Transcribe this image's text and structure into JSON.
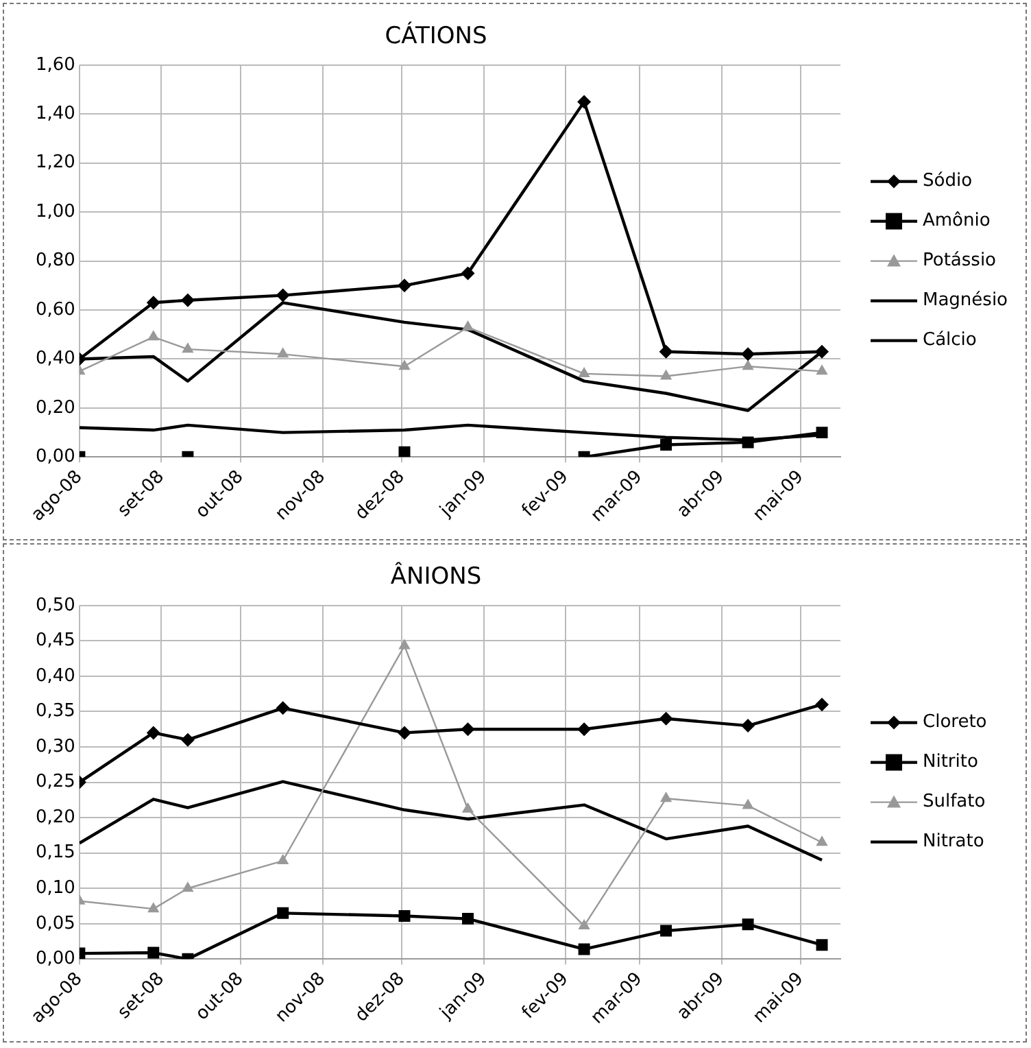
{
  "chart_data": [
    {
      "type": "line",
      "title": "CÁTIONS",
      "legend": "right",
      "grid": true,
      "x": [
        "2008-08-01",
        "2008-08-29",
        "2008-09-11",
        "2008-10-17",
        "2008-12-02",
        "2008-12-26",
        "2009-02-08",
        "2009-03-11",
        "2009-04-11",
        "2009-05-09"
      ],
      "xlim": [
        "2008-08-01",
        "2009-05-16"
      ],
      "xticks": [
        {
          "value": "2008-08-01",
          "label": "ago-08"
        },
        {
          "value": "2008-09-01",
          "label": "set-08"
        },
        {
          "value": "2008-10-01",
          "label": "out-08"
        },
        {
          "value": "2008-11-01",
          "label": "nov-08"
        },
        {
          "value": "2008-12-01",
          "label": "dez-08"
        },
        {
          "value": "2009-01-01",
          "label": "jan-09"
        },
        {
          "value": "2009-02-01",
          "label": "fev-09"
        },
        {
          "value": "2009-03-01",
          "label": "mar-09"
        },
        {
          "value": "2009-04-01",
          "label": "abr-09"
        },
        {
          "value": "2009-05-01",
          "label": "mai-09"
        }
      ],
      "ylim": [
        0,
        1.6
      ],
      "yticks": [
        {
          "value": 0,
          "label": "0,00"
        },
        {
          "value": 0.2,
          "label": "0,20"
        },
        {
          "value": 0.4,
          "label": "0,40"
        },
        {
          "value": 0.6,
          "label": "0,60"
        },
        {
          "value": 0.8,
          "label": "0,80"
        },
        {
          "value": 1.0,
          "label": "1,00"
        },
        {
          "value": 1.2,
          "label": "1,20"
        },
        {
          "value": 1.4,
          "label": "1,40"
        },
        {
          "value": 1.6,
          "label": "1,60"
        }
      ],
      "series": [
        {
          "name": "Sódio",
          "color": "#000000",
          "marker": "diamond",
          "values": [
            0.4,
            0.63,
            0.64,
            0.66,
            0.7,
            0.75,
            1.45,
            0.43,
            0.42,
            0.43
          ]
        },
        {
          "name": "Amônio",
          "color": "#000000",
          "marker": "square",
          "values": [
            0.0,
            null,
            0.0,
            null,
            0.02,
            null,
            0.0,
            0.05,
            0.06,
            0.1
          ]
        },
        {
          "name": "Potássio",
          "color": "#999999",
          "marker": "triangle",
          "values": [
            0.35,
            0.49,
            0.44,
            0.42,
            0.37,
            0.53,
            0.34,
            0.33,
            0.37,
            0.35
          ]
        },
        {
          "name": "Magnésio",
          "color": "#000000",
          "marker": "none",
          "values": [
            0.12,
            0.11,
            0.13,
            0.1,
            0.11,
            0.13,
            0.1,
            0.08,
            0.07,
            0.09
          ]
        },
        {
          "name": "Cálcio",
          "color": "#000000",
          "marker": "none",
          "values": [
            0.4,
            0.41,
            0.31,
            0.63,
            0.55,
            0.52,
            0.31,
            0.26,
            0.19,
            0.43
          ]
        }
      ]
    },
    {
      "type": "line",
      "title": "ÂNIONS",
      "legend": "right",
      "grid": true,
      "x": [
        "2008-08-01",
        "2008-08-29",
        "2008-09-11",
        "2008-10-17",
        "2008-12-02",
        "2008-12-26",
        "2009-02-08",
        "2009-03-11",
        "2009-04-11",
        "2009-05-09"
      ],
      "xlim": [
        "2008-08-01",
        "2009-05-16"
      ],
      "xticks": [
        {
          "value": "2008-08-01",
          "label": "ago-08"
        },
        {
          "value": "2008-09-01",
          "label": "set-08"
        },
        {
          "value": "2008-10-01",
          "label": "out-08"
        },
        {
          "value": "2008-11-01",
          "label": "nov-08"
        },
        {
          "value": "2008-12-01",
          "label": "dez-08"
        },
        {
          "value": "2009-01-01",
          "label": "jan-09"
        },
        {
          "value": "2009-02-01",
          "label": "fev-09"
        },
        {
          "value": "2009-03-01",
          "label": "mar-09"
        },
        {
          "value": "2009-04-01",
          "label": "abr-09"
        },
        {
          "value": "2009-05-01",
          "label": "mai-09"
        }
      ],
      "ylim": [
        0,
        0.5
      ],
      "yticks": [
        {
          "value": 0,
          "label": "0,00"
        },
        {
          "value": 0.05,
          "label": "0,05"
        },
        {
          "value": 0.1,
          "label": "0,10"
        },
        {
          "value": 0.15,
          "label": "0,15"
        },
        {
          "value": 0.2,
          "label": "0,20"
        },
        {
          "value": 0.25,
          "label": "0,25"
        },
        {
          "value": 0.3,
          "label": "0,30"
        },
        {
          "value": 0.35,
          "label": "0,35"
        },
        {
          "value": 0.4,
          "label": "0,40"
        },
        {
          "value": 0.45,
          "label": "0,45"
        },
        {
          "value": 0.5,
          "label": "0,50"
        }
      ],
      "series": [
        {
          "name": "Cloreto",
          "color": "#000000",
          "marker": "diamond",
          "values": [
            0.25,
            0.32,
            0.31,
            0.355,
            0.32,
            0.325,
            0.325,
            0.34,
            0.33,
            0.36
          ]
        },
        {
          "name": "Nitrito",
          "color": "#000000",
          "marker": "square",
          "values": [
            0.008,
            0.009,
            0.0,
            0.065,
            0.061,
            0.057,
            0.014,
            0.04,
            0.049,
            0.02
          ]
        },
        {
          "name": "Sulfato",
          "color": "#999999",
          "marker": "triangle",
          "values": [
            0.082,
            0.071,
            0.1,
            0.139,
            0.443,
            0.212,
            0.047,
            0.227,
            0.217,
            0.165
          ]
        },
        {
          "name": "Nitrato",
          "color": "#000000",
          "marker": "none",
          "values": [
            0.164,
            0.226,
            0.214,
            0.251,
            0.211,
            0.198,
            0.218,
            0.17,
            0.188,
            0.14
          ]
        }
      ]
    }
  ]
}
